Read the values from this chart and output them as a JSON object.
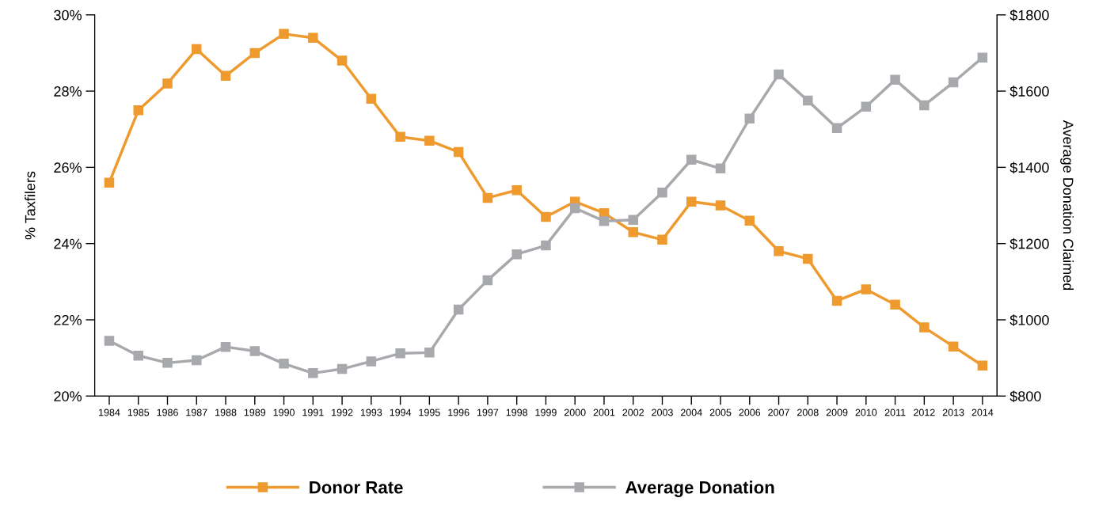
{
  "chart_data": {
    "type": "line",
    "categories": [
      "1984",
      "1985",
      "1986",
      "1987",
      "1988",
      "1989",
      "1990",
      "1991",
      "1992",
      "1993",
      "1994",
      "1995",
      "1996",
      "1997",
      "1998",
      "1999",
      "2000",
      "2001",
      "2002",
      "2003",
      "2004",
      "2005",
      "2006",
      "2007",
      "2008",
      "2009",
      "2010",
      "2011",
      "2012",
      "2013",
      "2014"
    ],
    "ylabel": "% Taxfilers",
    "y2label": "Average Donation Claimed",
    "ylim": [
      20,
      30
    ],
    "yticks": [
      {
        "value": 20,
        "label": "20%"
      },
      {
        "value": 22,
        "label": "22%"
      },
      {
        "value": 24,
        "label": "24%"
      },
      {
        "value": 26,
        "label": "26%"
      },
      {
        "value": 28,
        "label": "28%"
      },
      {
        "value": 30,
        "label": "30%"
      }
    ],
    "y2lim": [
      800,
      1800
    ],
    "y2ticks": [
      {
        "value": 800,
        "label": "$800"
      },
      {
        "value": 1000,
        "label": "$1000"
      },
      {
        "value": 1200,
        "label": "$1200"
      },
      {
        "value": 1400,
        "label": "$1400"
      },
      {
        "value": 1600,
        "label": "$1600"
      },
      {
        "value": 1800,
        "label": "$1800"
      }
    ],
    "marker": "square",
    "line_style": "solid",
    "grid": false,
    "legend": "bottom",
    "series": [
      {
        "name": "Donor Rate",
        "color": "#ee9a2e",
        "values": [
          25.6,
          27.5,
          28.2,
          29.1,
          28.4,
          29.0,
          29.5,
          29.4,
          28.8,
          27.8,
          26.8,
          26.7,
          26.4,
          25.2,
          25.4,
          24.7,
          25.1,
          24.8,
          24.3,
          24.1,
          25.1,
          25.0,
          24.6,
          23.8,
          23.6,
          22.5,
          22.8,
          22.4,
          21.8,
          21.3,
          20.8
        ]
      },
      {
        "name": "Average Donation",
        "color": "#a7a9ac",
        "axis": "y2",
        "values": [
          945,
          906,
          887,
          894,
          929,
          918,
          885,
          860,
          871,
          891,
          912,
          914,
          1027,
          1104,
          1172,
          1195,
          1293,
          1259,
          1262,
          1334,
          1420,
          1397,
          1528,
          1644,
          1575,
          1503,
          1559,
          1630,
          1563,
          1623,
          1688
        ]
      }
    ]
  }
}
